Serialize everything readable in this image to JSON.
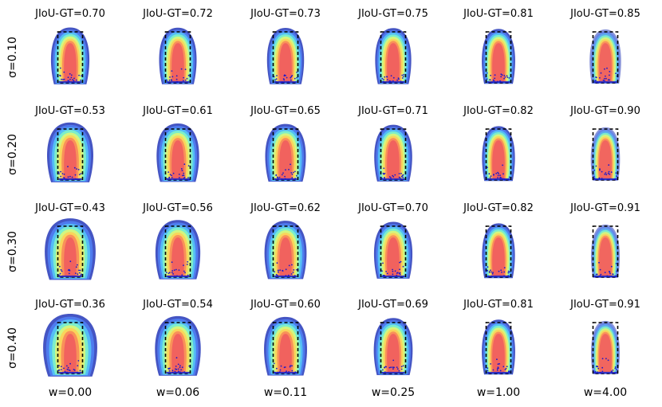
{
  "chart_data": {
    "type": "heatmap",
    "title": "",
    "metric_label": "JIoU-GT",
    "row_var": "σ",
    "col_var": "w",
    "rows": [
      {
        "label": "σ=0.10",
        "sigma": 0.1
      },
      {
        "label": "σ=0.20",
        "sigma": 0.2
      },
      {
        "label": "σ=0.30",
        "sigma": 0.3
      },
      {
        "label": "σ=0.40",
        "sigma": 0.4
      }
    ],
    "columns": [
      {
        "label": "w=0.00",
        "w": 0.0
      },
      {
        "label": "w=0.06",
        "w": 0.06
      },
      {
        "label": "w=0.11",
        "w": 0.11
      },
      {
        "label": "w=0.25",
        "w": 0.25
      },
      {
        "label": "w=1.00",
        "w": 1.0
      },
      {
        "label": "w=4.00",
        "w": 4.0
      }
    ],
    "titles": [
      [
        "JIoU-GT=0.70",
        "JIoU-GT=0.72",
        "JIoU-GT=0.73",
        "JIoU-GT=0.75",
        "JIoU-GT=0.81",
        "JIoU-GT=0.85"
      ],
      [
        "JIoU-GT=0.53",
        "JIoU-GT=0.61",
        "JIoU-GT=0.65",
        "JIoU-GT=0.71",
        "JIoU-GT=0.82",
        "JIoU-GT=0.90"
      ],
      [
        "JIoU-GT=0.43",
        "JIoU-GT=0.56",
        "JIoU-GT=0.62",
        "JIoU-GT=0.70",
        "JIoU-GT=0.82",
        "JIoU-GT=0.91"
      ],
      [
        "JIoU-GT=0.36",
        "JIoU-GT=0.54",
        "JIoU-GT=0.60",
        "JIoU-GT=0.69",
        "JIoU-GT=0.81",
        "JIoU-GT=0.91"
      ]
    ],
    "jiou_gt": [
      [
        0.7,
        0.72,
        0.73,
        0.75,
        0.81,
        0.85
      ],
      [
        0.53,
        0.61,
        0.65,
        0.71,
        0.82,
        0.9
      ],
      [
        0.43,
        0.56,
        0.62,
        0.7,
        0.82,
        0.91
      ],
      [
        0.36,
        0.54,
        0.6,
        0.69,
        0.81,
        0.91
      ]
    ],
    "colormap": "jet",
    "ground_truth_box_style": "dashed-black",
    "points_color": "#1a1acc",
    "grid": false,
    "legend": "none"
  }
}
